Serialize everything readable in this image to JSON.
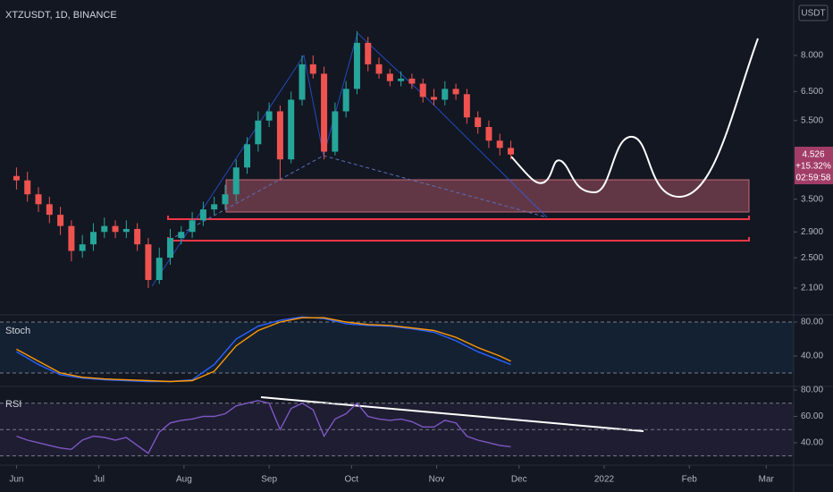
{
  "chart_data": [
    {
      "type": "candlestick",
      "title": "XTZUSDT, 1D, BINANCE",
      "log": true,
      "x": [
        0,
        4,
        8,
        12,
        16,
        20,
        24,
        28,
        32,
        36,
        40,
        44,
        48,
        52,
        56,
        60,
        64,
        68,
        72,
        76,
        80,
        84,
        88,
        92,
        96,
        100,
        104,
        108,
        112,
        116,
        120,
        124,
        128,
        132,
        136,
        140,
        144,
        148,
        152,
        156,
        160,
        164,
        168,
        172,
        176,
        180
      ],
      "open": [
        4.0,
        3.9,
        3.6,
        3.4,
        3.2,
        3.0,
        2.6,
        2.7,
        2.9,
        3.0,
        2.9,
        2.95,
        2.7,
        2.2,
        2.5,
        2.8,
        2.9,
        3.1,
        3.3,
        3.4,
        3.6,
        4.2,
        4.8,
        5.5,
        5.8,
        4.4,
        6.2,
        7.6,
        7.2,
        4.6,
        5.8,
        6.6,
        8.6,
        7.6,
        7.2,
        6.9,
        7.0,
        6.8,
        6.3,
        6.2,
        6.6,
        6.4,
        5.6,
        5.3,
        4.9,
        4.7
      ],
      "high": [
        4.2,
        4.1,
        3.75,
        3.55,
        3.35,
        3.1,
        2.85,
        3.05,
        3.15,
        3.1,
        3.1,
        3.05,
        2.8,
        2.65,
        2.95,
        3.0,
        3.25,
        3.45,
        3.55,
        3.8,
        4.4,
        5.0,
        5.8,
        6.1,
        6.0,
        6.5,
        8.0,
        8.0,
        7.5,
        6.1,
        6.9,
        9.2,
        8.9,
        7.9,
        7.4,
        7.3,
        7.2,
        7.0,
        6.6,
        6.9,
        6.8,
        6.6,
        5.8,
        5.5,
        5.1,
        4.9
      ],
      "low": [
        3.7,
        3.45,
        3.25,
        3.05,
        2.85,
        2.45,
        2.5,
        2.6,
        2.8,
        2.8,
        2.8,
        2.6,
        2.1,
        2.15,
        2.4,
        2.7,
        2.8,
        3.0,
        3.2,
        3.3,
        3.45,
        4.05,
        4.6,
        5.3,
        3.9,
        4.3,
        6.0,
        7.0,
        4.4,
        4.5,
        5.6,
        6.4,
        7.3,
        7.0,
        6.7,
        6.7,
        6.6,
        6.1,
        6.0,
        6.0,
        6.2,
        5.4,
        5.1,
        4.7,
        4.5,
        4.4
      ],
      "close": [
        3.9,
        3.6,
        3.4,
        3.2,
        3.0,
        2.6,
        2.7,
        2.9,
        3.0,
        2.9,
        2.95,
        2.7,
        2.2,
        2.5,
        2.8,
        2.9,
        3.1,
        3.3,
        3.4,
        3.6,
        4.2,
        4.8,
        5.5,
        5.8,
        4.4,
        6.2,
        7.6,
        7.2,
        4.6,
        5.8,
        6.6,
        8.6,
        7.6,
        7.2,
        6.9,
        7.0,
        6.8,
        6.3,
        6.2,
        6.6,
        6.4,
        5.6,
        5.3,
        4.9,
        4.7,
        4.526
      ],
      "up_color": "#26a69a",
      "down_color": "#ef5350",
      "xlim": [
        -6,
        283
      ],
      "ylim": [
        1.8,
        11
      ],
      "xticks": [
        {
          "value": 0,
          "label": "Jun"
        },
        {
          "value": 30,
          "label": "Jul"
        },
        {
          "value": 61,
          "label": "Aug"
        },
        {
          "value": 92,
          "label": "Sep"
        },
        {
          "value": 122,
          "label": "Oct"
        },
        {
          "value": 153,
          "label": "Nov"
        },
        {
          "value": 183,
          "label": "Dec"
        },
        {
          "value": 214,
          "label": "2022"
        },
        {
          "value": 245,
          "label": "Feb"
        },
        {
          "value": 273,
          "label": "Mar"
        }
      ],
      "yticks": [
        {
          "value": 2.1,
          "label": "2.100"
        },
        {
          "value": 2.5,
          "label": "2.500"
        },
        {
          "value": 2.9,
          "label": "2.900"
        },
        {
          "value": 3.5,
          "label": "3.500"
        },
        {
          "value": 5.5,
          "label": "5.500"
        },
        {
          "value": 6.5,
          "label": "6.500"
        },
        {
          "value": 8,
          "label": "8.000"
        }
      ]
    },
    {
      "type": "line",
      "title": "Stoch",
      "x": [
        0,
        8,
        16,
        24,
        32,
        40,
        48,
        56,
        64,
        72,
        80,
        88,
        96,
        104,
        112,
        120,
        128,
        136,
        144,
        152,
        160,
        168,
        176,
        180
      ],
      "series": [
        {
          "color": "#2962ff",
          "values": [
            45,
            30,
            18,
            14,
            12,
            11,
            10,
            10,
            12,
            30,
            60,
            75,
            82,
            86,
            84,
            78,
            76,
            75,
            72,
            68,
            58,
            45,
            35,
            30
          ]
        },
        {
          "color": "#ff9800",
          "values": [
            48,
            34,
            20,
            15,
            13,
            12,
            11,
            10,
            11,
            22,
            52,
            70,
            80,
            85,
            85,
            80,
            77,
            76,
            73,
            70,
            62,
            50,
            40,
            34
          ]
        }
      ],
      "xlim": [
        -6,
        283
      ],
      "ylim": [
        4.2,
        88.4
      ],
      "yticks": [
        {
          "value": 40,
          "label": "40.00"
        },
        {
          "value": 80,
          "label": "80.00"
        }
      ],
      "bands": [
        20,
        80
      ]
    },
    {
      "type": "line",
      "title": "RSI",
      "x": [
        0,
        4,
        8,
        12,
        16,
        20,
        24,
        28,
        32,
        36,
        40,
        44,
        48,
        52,
        56,
        60,
        64,
        68,
        72,
        76,
        80,
        84,
        88,
        92,
        96,
        100,
        104,
        108,
        112,
        116,
        120,
        124,
        128,
        132,
        136,
        140,
        144,
        148,
        152,
        156,
        160,
        164,
        168,
        172,
        176,
        180
      ],
      "series": [
        {
          "color": "#7e57c2",
          "values": [
            45,
            42,
            40,
            38,
            36,
            35,
            42,
            45,
            44,
            42,
            44,
            38,
            32,
            48,
            55,
            57,
            58,
            60,
            60,
            62,
            68,
            70,
            72,
            70,
            50,
            66,
            70,
            65,
            45,
            58,
            62,
            70,
            60,
            58,
            57,
            58,
            56,
            52,
            52,
            57,
            55,
            45,
            42,
            40,
            38,
            37
          ]
        }
      ],
      "xlim": [
        -6,
        283
      ],
      "ylim": [
        23,
        82.7
      ],
      "yticks": [
        {
          "value": 40,
          "label": "40.00"
        },
        {
          "value": 60,
          "label": "60.00"
        },
        {
          "value": 80,
          "label": "80.00"
        }
      ],
      "bands": [
        30,
        50,
        70
      ]
    }
  ],
  "currency": "USDT",
  "price_tag": {
    "price": "4.526",
    "change": "+15.32%",
    "countdown": "02:59:58"
  }
}
